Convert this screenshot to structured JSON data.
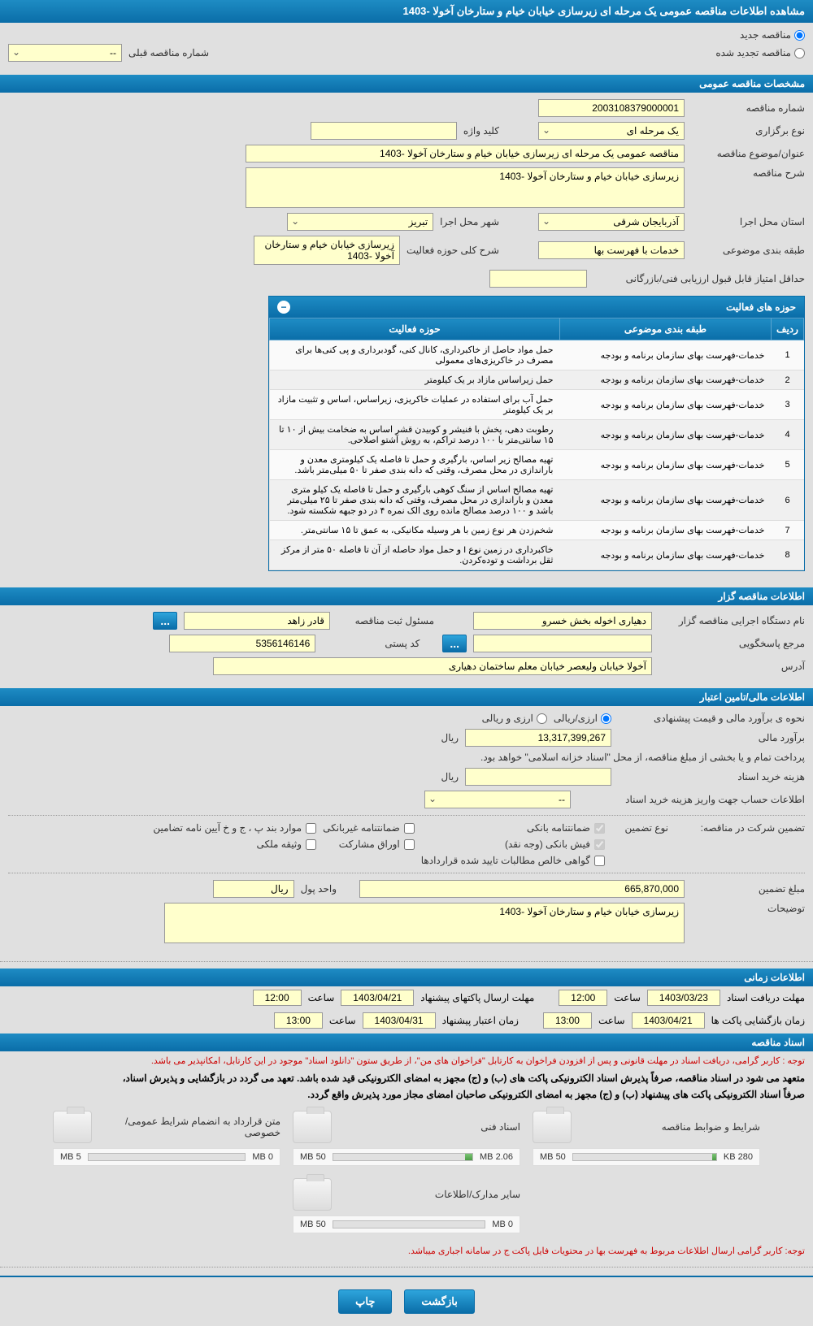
{
  "header": {
    "title": "مشاهده اطلاعات مناقصه عمومی یک مرحله ای زیرسازی خیابان خیام و ستارخان آخولا -1403"
  },
  "topRadio": {
    "new": "مناقصه جدید",
    "renew": "مناقصه تجدید شده",
    "prevNumLabel": "شماره مناقصه قبلی",
    "prevNumValue": "--"
  },
  "sections": {
    "general": "مشخصات مناقصه عمومی",
    "activity": "حوزه های فعالیت",
    "organizer": "اطلاعات مناقصه گزار",
    "financial": "اطلاعات مالی/تامین اعتبار",
    "timing": "اطلاعات زمانی",
    "documents": "اسناد مناقصه"
  },
  "general": {
    "tenderNumLabel": "شماره مناقصه",
    "tenderNum": "2003108379000001",
    "typeLabel": "نوع برگزاری",
    "type": "یک مرحله ای",
    "keywordLabel": "کلید واژه",
    "keyword": "",
    "subjectLabel": "عنوان/موضوع مناقصه",
    "subject": "مناقصه عمومی یک مرحله ای زیرسازی خیابان خیام و ستارخان آخولا -1403",
    "descLabel": "شرح مناقصه",
    "desc": "زیرسازی خیابان خیام و ستارخان آخولا -1403",
    "provinceLabel": "استان محل اجرا",
    "province": "آذربایجان شرقی",
    "cityLabel": "شهر محل اجرا",
    "city": "تبریز",
    "categoryLabel": "طبقه بندی موضوعی",
    "category": "خدمات با فهرست بها",
    "scopeDescLabel": "شرح کلی حوزه فعالیت",
    "scopeDesc": "زیرسازی خیابان خیام و ستارخان آخولا -1403",
    "minScoreLabel": "حداقل امتیاز قابل قبول ارزیابی فنی/بازرگانی",
    "minScore": ""
  },
  "activityTable": {
    "cols": {
      "num": "ردیف",
      "cat": "طبقه بندی موضوعی",
      "scope": "حوزه فعالیت"
    },
    "rows": [
      {
        "n": "1",
        "cat": "خدمات-فهرست بهای سازمان برنامه و بودجه",
        "scope": "حمل مواد حاصل از خاکبرداری، کانال کنی، گودبرداری و پی کنی‌ها برای مصرف در خاکریزی‌های معمولی"
      },
      {
        "n": "2",
        "cat": "خدمات-فهرست بهای سازمان برنامه و بودجه",
        "scope": "حمل زیراساس مازاد بر یک کیلومتر"
      },
      {
        "n": "3",
        "cat": "خدمات-فهرست بهای سازمان برنامه و بودجه",
        "scope": "حمل آب برای استفاده در عملیات خاکریزی، زیراساس، اساس و تثبیت مازاد بر یک کیلومتر"
      },
      {
        "n": "4",
        "cat": "خدمات-فهرست بهای سازمان برنامه و بودجه",
        "scope": "رطوبت دهی، پخش با فنیشر و کوبیدن قشر اساس به ضخامت بیش از ۱۰ تا ۱۵ سانتی‌متر با ۱۰۰ درصد تراکم، به روش آشتو اصلاحی."
      },
      {
        "n": "5",
        "cat": "خدمات-فهرست بهای سازمان برنامه و بودجه",
        "scope": "تهیه مصالح زیر اساس، بارگیری و حمل تا فاصله یک کیلومتری معدن و باراندازی در محل مصرف، وقتی که دانه بندی صفر تا ۵۰ میلی‌متر باشد."
      },
      {
        "n": "6",
        "cat": "خدمات-فهرست بهای سازمان برنامه و بودجه",
        "scope": "تهیه مصالح اساس از سنگ کوهی بارگیری و حمل تا فاصله یک کیلو متری معدن و باراندازی در محل مصرف، وقتی که دانه بندی صفر تا ۲۵ میلی‌متر باشد و ۱۰۰ درصد مصالح مانده روی الک نمره ۴ در دو جبهه شکسته شود."
      },
      {
        "n": "7",
        "cat": "خدمات-فهرست بهای سازمان برنامه و بودجه",
        "scope": "شخم‌زدن هر نوع زمین با هر وسیله مکانیکی، به عمق تا ۱۵ سانتی‌متر."
      },
      {
        "n": "8",
        "cat": "خدمات-فهرست بهای سازمان برنامه و بودجه",
        "scope": "خاکبرداری در زمین نوع I و حمل مواد حاصله از آن تا فاصله ۵۰ متر از مرکز ثقل برداشت و توده‌کردن."
      }
    ]
  },
  "organizer": {
    "orgLabel": "نام دستگاه اجرایی مناقصه گزار",
    "org": "دهیاری اخوله بخش خسرو",
    "respLabel": "مسئول ثبت مناقصه",
    "resp": "قادر زاهد",
    "inquiryLabel": "مرجع پاسخگویی",
    "inquiry": "",
    "postalLabel": "کد پستی",
    "postal": "5356146146",
    "addressLabel": "آدرس",
    "address": "آخولا خیابان ولیعصر خیابان معلم ساختمان دهیاری"
  },
  "financial": {
    "estimateMethodLabel": "نحوه ی برآورد مالی و قیمت پیشنهادی",
    "opt1": "ارزی/ریالی",
    "opt2": "ارزی و ریالی",
    "estimateLabel": "برآورد مالی",
    "estimate": "13,317,399,267",
    "currency": "ریال",
    "paymentNote": "پرداخت تمام و یا بخشی از مبلغ مناقصه، از محل \"اسناد خزانه اسلامی\" خواهد بود.",
    "docCostLabel": "هزینه خرید اسناد",
    "docCost": "",
    "docCostCurrency": "ریال",
    "accountLabel": "اطلاعات حساب جهت واریز هزینه خرید اسناد",
    "account": "--",
    "guaranteeTypeLabel": "تضمین شرکت در مناقصه:",
    "guaranteeTypeLabel2": "نوع تضمین",
    "chk1": "ضمانتنامه بانکی",
    "chk2": "ضمانتنامه غیربانکی",
    "chk3": "موارد بند پ ، ج و خ آیین نامه تضامین",
    "chk4": "فیش بانکی (وجه نقد)",
    "chk5": "اوراق مشارکت",
    "chk6": "وثیقه ملکی",
    "chk7": "گواهی خالص مطالبات تایید شده قراردادها",
    "guaranteeAmtLabel": "مبلغ تضمین",
    "guaranteeAmt": "665,870,000",
    "unitLabel": "واحد پول",
    "unit": "ریال",
    "remarksLabel": "توضیحات",
    "remarks": "زیرسازی خیابان خیام و ستارخان آخولا -1403"
  },
  "timing": {
    "deadlineLabel": "مهلت دریافت اسناد",
    "deadlineDate": "1403/03/23",
    "deadlineTime": "12:00",
    "proposalLabel": "مهلت ارسال پاکتهای پیشنهاد",
    "proposalDate": "1403/04/21",
    "proposalTime": "12:00",
    "openLabel": "زمان بازگشایی پاکت ها",
    "openDate": "1403/04/21",
    "openTime": "13:00",
    "validityLabel": "زمان اعتبار پیشنهاد",
    "validityDate": "1403/04/31",
    "validityTime": "13:00",
    "hourLabel": "ساعت"
  },
  "notes": {
    "red1": "توجه : کاربر گرامی، دریافت اسناد در مهلت قانونی و پس از افزودن فراخوان به کارتابل \"فراخوان های من\"، از طریق ستون \"دانلود اسناد\" موجود در این کارتابل، امکانپذیر می باشد.",
    "b1": "متعهد می شود در اسناد مناقصه، صرفاً پذیرش اسناد الکترونیکی پاکت های (ب) و (ج) مجهز به امضای الکترونیکی قید شده باشد. تعهد می گردد در بازگشایی و پذیرش اسناد،",
    "b2": "صرفاً اسناد الکترونیکی پاکت های پیشنهاد (ب) و (ج) مجهز به امضای الکترونیکی صاحبان امضای مجاز مورد پذیرش واقع گردد.",
    "red2": "توجه: کاربر گرامی ارسال اطلاعات مربوط به فهرست بها در محتویات فایل پاکت ج در سامانه اجباری میباشد."
  },
  "docs": [
    {
      "title": "شرایط و ضوابط مناقصه",
      "size": "280 KB",
      "max": "50 MB",
      "pct": 3
    },
    {
      "title": "اسناد فنی",
      "size": "2.06 MB",
      "max": "50 MB",
      "pct": 5
    },
    {
      "title": "متن قرارداد به انضمام شرایط عمومی/خصوصی",
      "size": "0 MB",
      "max": "5 MB",
      "pct": 0
    },
    {
      "title": "سایر مدارک/اطلاعات",
      "size": "0 MB",
      "max": "50 MB",
      "pct": 0
    }
  ],
  "buttons": {
    "print": "چاپ",
    "back": "بازگشت"
  },
  "colors": {
    "headerGradTop": "#1e8cc4",
    "headerGradBottom": "#0a6da8",
    "yellowBg": "#ffffcc",
    "pageBg": "#e0e0e0",
    "redText": "#cc0000"
  }
}
